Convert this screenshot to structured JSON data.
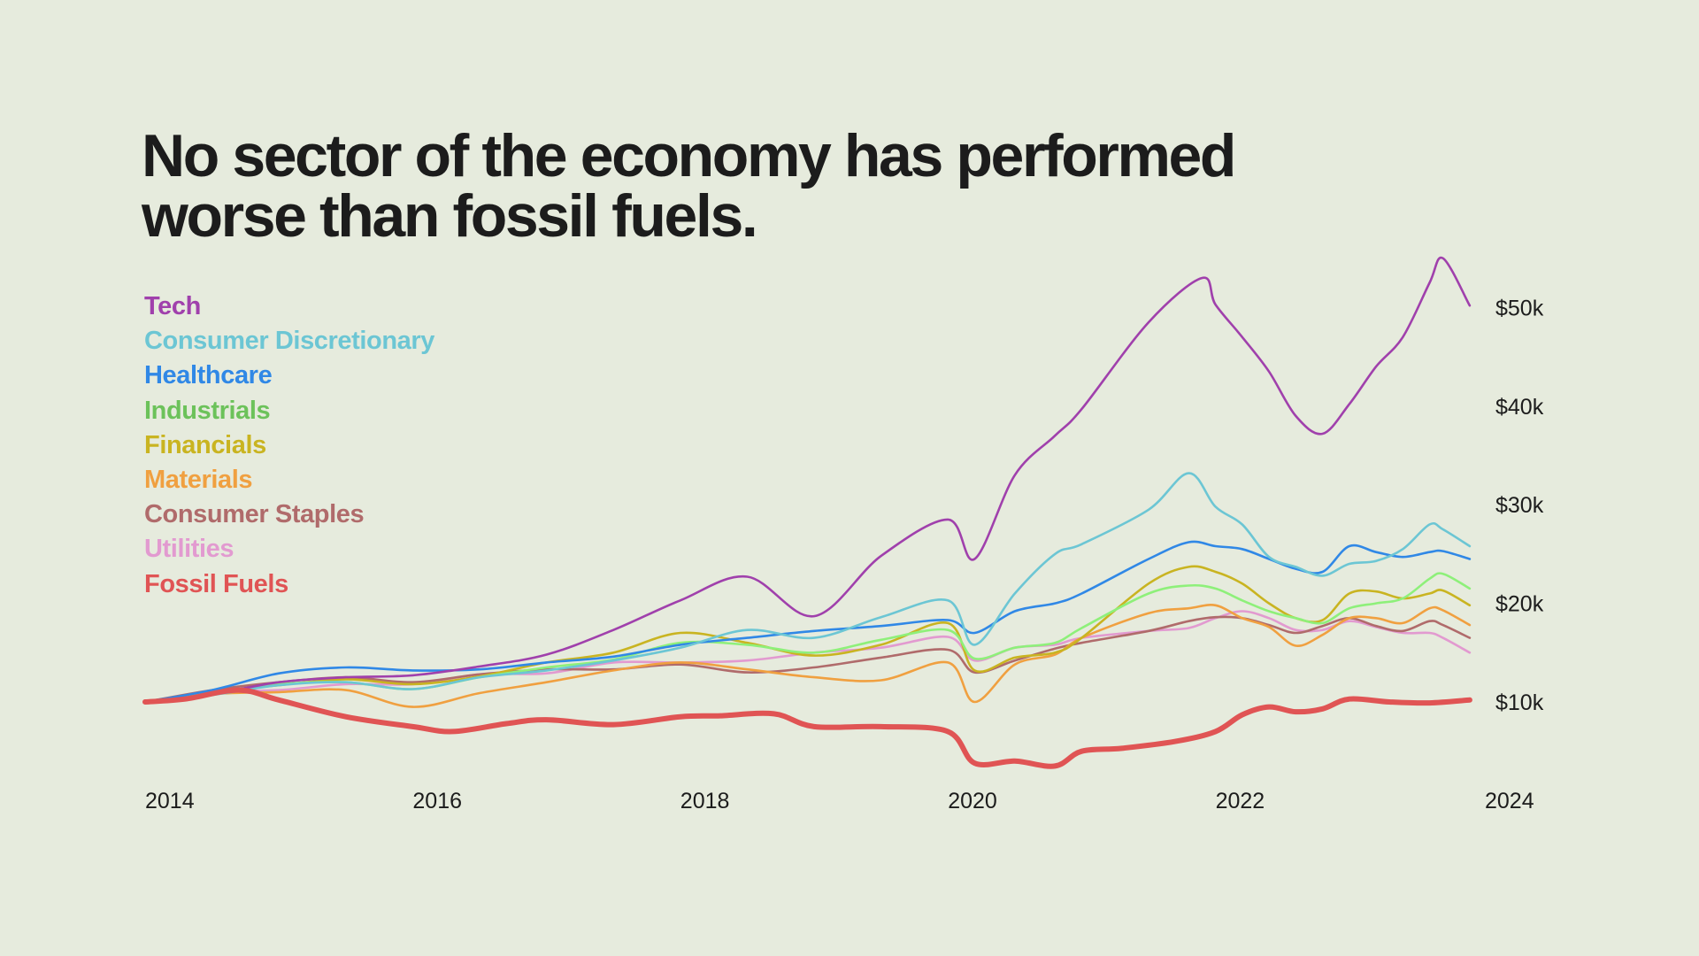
{
  "chart_data": {
    "type": "line",
    "title": "No sector of the economy has performed worse than fossil fuels.",
    "xlabel": "",
    "ylabel": "",
    "xlim": [
      2014,
      2024
    ],
    "ylim": [
      0,
      52000
    ],
    "x_ticks": [
      {
        "value": 2014,
        "label": "2014"
      },
      {
        "value": 2016,
        "label": "2016"
      },
      {
        "value": 2018,
        "label": "2018"
      },
      {
        "value": 2020,
        "label": "2020"
      },
      {
        "value": 2022,
        "label": "2022"
      },
      {
        "value": 2024,
        "label": "2024"
      }
    ],
    "y_ticks": [
      {
        "value": 10000,
        "label": "$10k"
      },
      {
        "value": 20000,
        "label": "$20k"
      },
      {
        "value": 30000,
        "label": "$30k"
      },
      {
        "value": 40000,
        "label": "$40k"
      },
      {
        "value": 50000,
        "label": "$50k"
      }
    ],
    "legend_position": "top-left",
    "grid": false,
    "series": [
      {
        "name": "Tech",
        "color": "#a040ac",
        "x": [
          2014,
          2014.5,
          2015,
          2015.5,
          2016,
          2016.5,
          2017,
          2017.5,
          2018,
          2018.5,
          2019,
          2019.5,
          2020,
          2020.2,
          2020.5,
          2020.8,
          2021,
          2021.5,
          2021.9,
          2022,
          2022.2,
          2022.4,
          2022.6,
          2022.8,
          2023,
          2023.2,
          2023.4,
          2023.6,
          2023.7,
          2023.9
        ],
        "y": [
          10000,
          10800,
          12000,
          12500,
          12700,
          13600,
          14800,
          17300,
          20300,
          22700,
          18700,
          24800,
          28500,
          24500,
          33000,
          37000,
          39700,
          48500,
          53000,
          50300,
          47000,
          43500,
          39000,
          37200,
          40200,
          44000,
          47000,
          52500,
          55000,
          50200
        ]
      },
      {
        "name": "Consumer Discretionary",
        "color": "#6cc6d4",
        "x": [
          2014,
          2014.5,
          2015,
          2015.5,
          2016,
          2016.5,
          2017,
          2017.5,
          2018,
          2018.5,
          2019,
          2019.5,
          2020,
          2020.2,
          2020.5,
          2020.8,
          2021,
          2021.5,
          2021.8,
          2022,
          2022.2,
          2022.4,
          2022.6,
          2022.8,
          2023,
          2023.2,
          2023.4,
          2023.6,
          2023.7,
          2023.9
        ],
        "y": [
          10000,
          10700,
          11700,
          12000,
          11300,
          12500,
          13200,
          14200,
          15500,
          17300,
          16500,
          18600,
          20300,
          15800,
          21000,
          25000,
          26000,
          29500,
          33200,
          29800,
          28000,
          24700,
          23700,
          22800,
          24000,
          24300,
          25500,
          28000,
          27500,
          25800
        ]
      },
      {
        "name": "Healthcare",
        "color": "#3088e6",
        "x": [
          2014,
          2014.5,
          2015,
          2015.5,
          2016,
          2016.5,
          2017,
          2017.5,
          2018,
          2018.5,
          2019,
          2019.5,
          2020,
          2020.2,
          2020.5,
          2020.8,
          2021,
          2021.5,
          2021.8,
          2022,
          2022.2,
          2022.4,
          2022.6,
          2022.8,
          2023,
          2023.2,
          2023.4,
          2023.6,
          2023.7,
          2023.9
        ],
        "y": [
          10000,
          11200,
          12900,
          13500,
          13200,
          13300,
          14000,
          14600,
          15800,
          16500,
          17200,
          17700,
          18300,
          17000,
          19200,
          20000,
          21000,
          24500,
          26200,
          25800,
          25500,
          24500,
          23500,
          23200,
          25800,
          25200,
          24700,
          25200,
          25300,
          24500
        ]
      },
      {
        "name": "Industrials",
        "color": "#8ef07a",
        "x": [
          2014,
          2014.5,
          2015,
          2015.5,
          2016,
          2016.5,
          2017,
          2017.5,
          2018,
          2018.5,
          2019,
          2019.5,
          2020,
          2020.2,
          2020.5,
          2020.8,
          2021,
          2021.5,
          2021.8,
          2022,
          2022.2,
          2022.4,
          2022.6,
          2022.8,
          2023,
          2023.2,
          2023.4,
          2023.6,
          2023.7,
          2023.9
        ],
        "y": [
          10000,
          10900,
          11800,
          12000,
          11300,
          12500,
          13500,
          14300,
          16000,
          15800,
          15000,
          16300,
          17300,
          14400,
          15500,
          16000,
          17500,
          21000,
          21800,
          21500,
          20300,
          19200,
          18500,
          18000,
          19500,
          20000,
          20500,
          22500,
          23000,
          21500
        ]
      },
      {
        "name": "Financials",
        "color": "#c9b421",
        "x": [
          2014,
          2014.5,
          2015,
          2015.5,
          2016,
          2016.5,
          2017,
          2017.5,
          2018,
          2018.5,
          2019,
          2019.5,
          2020,
          2020.2,
          2020.5,
          2020.8,
          2021,
          2021.5,
          2021.8,
          2022,
          2022.2,
          2022.4,
          2022.6,
          2022.8,
          2023,
          2023.2,
          2023.4,
          2023.6,
          2023.7,
          2023.9
        ],
        "y": [
          10000,
          11000,
          11700,
          12300,
          11800,
          12600,
          14000,
          15000,
          17000,
          16000,
          14700,
          15800,
          18000,
          13200,
          14500,
          15000,
          16500,
          22000,
          23700,
          23200,
          22000,
          20000,
          18500,
          18300,
          21000,
          21200,
          20500,
          21000,
          21300,
          19800
        ]
      },
      {
        "name": "Materials",
        "color": "#f0a040",
        "x": [
          2014,
          2014.5,
          2015,
          2015.5,
          2016,
          2016.5,
          2017,
          2017.5,
          2018,
          2018.5,
          2019,
          2019.5,
          2020,
          2020.2,
          2020.5,
          2020.8,
          2021,
          2021.5,
          2021.8,
          2022,
          2022.2,
          2022.4,
          2022.6,
          2022.8,
          2023,
          2023.2,
          2023.4,
          2023.6,
          2023.7,
          2023.9
        ],
        "y": [
          10000,
          10800,
          11000,
          11200,
          9500,
          10900,
          12000,
          13200,
          14000,
          13300,
          12500,
          12200,
          14000,
          10000,
          13800,
          14800,
          16500,
          19000,
          19500,
          19800,
          18500,
          17600,
          15700,
          16800,
          18500,
          18500,
          18000,
          19500,
          19300,
          17800
        ]
      },
      {
        "name": "Consumer Staples",
        "color": "#b06b6b",
        "x": [
          2014,
          2014.5,
          2015,
          2015.5,
          2016,
          2016.5,
          2017,
          2017.5,
          2018,
          2018.5,
          2019,
          2019.5,
          2020,
          2020.2,
          2020.5,
          2020.8,
          2021,
          2021.5,
          2021.8,
          2022,
          2022.2,
          2022.4,
          2022.6,
          2022.8,
          2023,
          2023.2,
          2023.4,
          2023.6,
          2023.7,
          2023.9
        ],
        "y": [
          10000,
          11200,
          12000,
          12500,
          12000,
          12800,
          13300,
          13300,
          13800,
          13000,
          13500,
          14500,
          15300,
          13000,
          14200,
          15400,
          16000,
          17200,
          18200,
          18600,
          18500,
          17800,
          17000,
          17700,
          18500,
          17700,
          17200,
          18200,
          17800,
          16500
        ]
      },
      {
        "name": "Utilities",
        "color": "#e29ad0",
        "x": [
          2014,
          2014.5,
          2015,
          2015.5,
          2016,
          2016.5,
          2017,
          2017.5,
          2018,
          2018.5,
          2019,
          2019.5,
          2020,
          2020.2,
          2020.5,
          2020.8,
          2021,
          2021.5,
          2021.8,
          2022,
          2022.2,
          2022.4,
          2022.6,
          2022.8,
          2023,
          2023.2,
          2023.4,
          2023.6,
          2023.7,
          2023.9
        ],
        "y": [
          10000,
          11000,
          11200,
          11800,
          11800,
          12800,
          12900,
          14000,
          14000,
          14200,
          15000,
          15500,
          16600,
          14200,
          15500,
          15800,
          16500,
          17200,
          17500,
          18500,
          19200,
          18500,
          17300,
          17300,
          18200,
          17600,
          17000,
          17000,
          16500,
          15000
        ]
      },
      {
        "name": "Fossil Fuels",
        "color": "#e05454",
        "x": [
          2014,
          2014.3,
          2014.7,
          2015,
          2015.5,
          2016,
          2016.3,
          2016.7,
          2017,
          2017.5,
          2018,
          2018.3,
          2018.7,
          2019,
          2019.5,
          2020,
          2020.2,
          2020.5,
          2020.8,
          2021,
          2021.3,
          2021.7,
          2022,
          2022.2,
          2022.4,
          2022.6,
          2022.8,
          2023,
          2023.3,
          2023.6,
          2023.9
        ],
        "y": [
          10000,
          10300,
          11200,
          10200,
          8500,
          7500,
          7000,
          7800,
          8200,
          7700,
          8500,
          8600,
          8800,
          7500,
          7500,
          7000,
          3800,
          4000,
          3500,
          5000,
          5300,
          6000,
          7000,
          8700,
          9500,
          9000,
          9300,
          10300,
          10000,
          9900,
          10200
        ]
      }
    ]
  }
}
